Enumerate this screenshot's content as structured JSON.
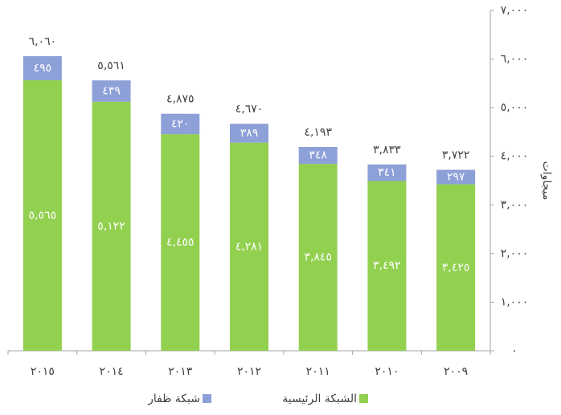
{
  "chart_data": {
    "type": "bar",
    "stacked": true,
    "y_axis_label": "ميجاوات",
    "categories": [
      "٢٠١٥",
      "٢٠١٤",
      "٢٠١٣",
      "٢٠١٢",
      "٢٠١١",
      "٢٠١٠",
      "٢٠٠٩"
    ],
    "series": [
      {
        "name": "الشبكة الرئيسية",
        "color": "#92d050",
        "values": [
          5565,
          5122,
          4455,
          4281,
          3845,
          3492,
          3425
        ],
        "value_labels": [
          "٥,٥٦٥",
          "٥,١٢٢",
          "٤,٤٥٥",
          "٤,٢٨١",
          "٣,٨٤٥",
          "٣,٤٩٢",
          "٣,٤٢٥"
        ]
      },
      {
        "name": "شبكة ظفار",
        "color": "#8ea0d8",
        "values": [
          495,
          439,
          420,
          389,
          348,
          341,
          297
        ],
        "value_labels": [
          "٤٩٥",
          "٤٣٩",
          "٤٢٠",
          "٣٨٩",
          "٣٤٨",
          "٣٤١",
          "٢٩٧"
        ]
      }
    ],
    "totals": [
      6060,
      5561,
      4875,
      4670,
      4193,
      3833,
      3722
    ],
    "total_labels": [
      "٦,٠٦٠",
      "٥,٥٦١",
      "٤,٨٧٥",
      "٤,٦٧٠",
      "٤,١٩٣",
      "٣,٨٣٣",
      "٣,٧٢٢"
    ],
    "ylim": [
      0,
      7000
    ],
    "yticks": [
      {
        "value": 0,
        "label": "٠"
      },
      {
        "value": 1000,
        "label": "١,٠٠٠"
      },
      {
        "value": 2000,
        "label": "٢,٠٠٠"
      },
      {
        "value": 3000,
        "label": "٣,٠٠٠"
      },
      {
        "value": 4000,
        "label": "٤,٠٠٠"
      },
      {
        "value": 5000,
        "label": "٥,٠٠٠"
      },
      {
        "value": 6000,
        "label": "٦,٠٠٠"
      },
      {
        "value": 7000,
        "label": "٧,٠٠٠"
      }
    ],
    "grid": false,
    "legend": "bottom"
  }
}
